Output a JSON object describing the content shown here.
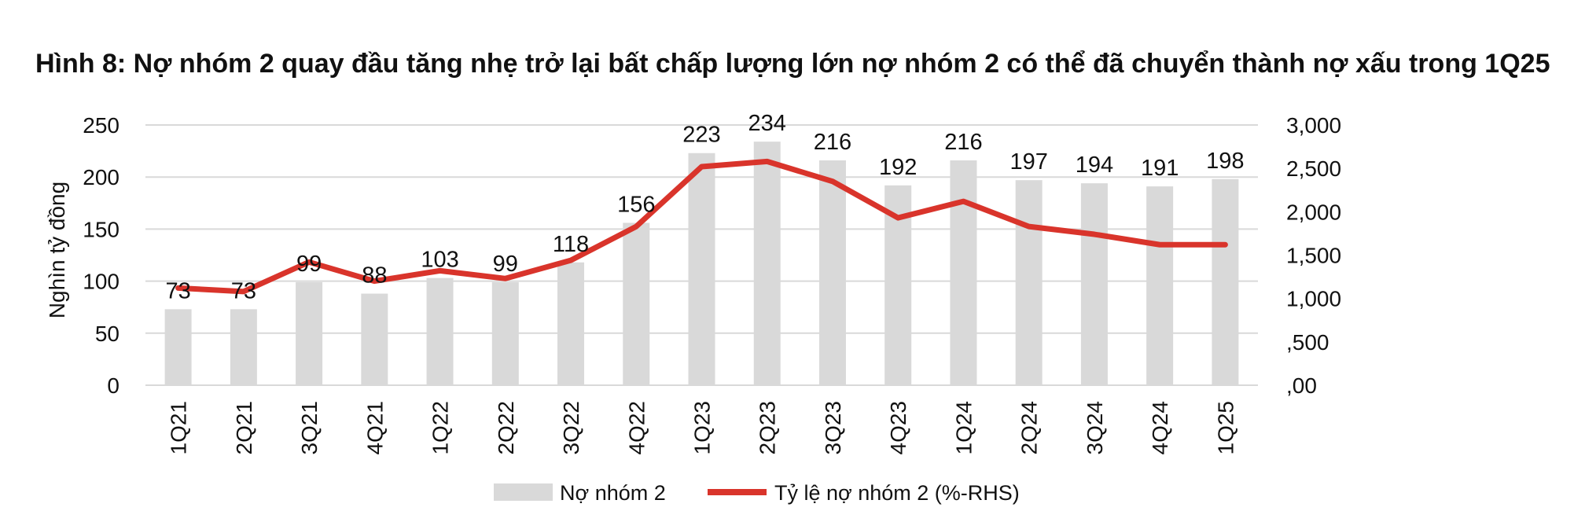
{
  "title": "Hình 8: Nợ nhóm 2 quay đầu tăng nhẹ trở lại bất chấp lượng lớn nợ nhóm 2 có thể đã chuyển thành nợ xấu trong 1Q25",
  "chart_data": {
    "type": "bar",
    "categories": [
      "1Q21",
      "2Q21",
      "3Q21",
      "4Q21",
      "1Q22",
      "2Q22",
      "3Q22",
      "4Q22",
      "1Q23",
      "2Q23",
      "3Q23",
      "4Q23",
      "1Q24",
      "2Q24",
      "3Q24",
      "4Q24",
      "1Q25"
    ],
    "ylabel": "Nghìn tỷ đồng",
    "ylim": [
      0,
      250
    ],
    "y_ticks": [
      "0",
      "50",
      "100",
      "150",
      "200",
      "250"
    ],
    "y2lim": [
      0,
      3.0
    ],
    "y2_ticks": [
      ",00",
      ",500",
      "1,000",
      "1,500",
      "2,000",
      "2,500",
      "3,000"
    ],
    "grid": true,
    "legend_position": "bottom",
    "series": [
      {
        "name": "Nợ nhóm 2",
        "type": "bar",
        "axis": "left",
        "color": "#d9d9d9",
        "values": [
          73,
          73,
          99,
          88,
          103,
          99,
          118,
          156,
          223,
          234,
          216,
          192,
          216,
          197,
          194,
          191,
          198
        ],
        "labels": [
          "73",
          "73",
          "99",
          "88",
          "103",
          "99",
          "118",
          "156",
          "223",
          "234",
          "216",
          "192",
          "216",
          "197",
          "194",
          "191",
          "198"
        ]
      },
      {
        "name": "Tỷ lệ nợ nhóm 2 (%-RHS)",
        "type": "line",
        "axis": "right",
        "color": "#d9342b",
        "values": [
          1.12,
          1.08,
          1.42,
          1.2,
          1.32,
          1.23,
          1.44,
          1.83,
          2.52,
          2.58,
          2.35,
          1.93,
          2.12,
          1.83,
          1.74,
          1.62,
          1.62
        ]
      }
    ]
  }
}
